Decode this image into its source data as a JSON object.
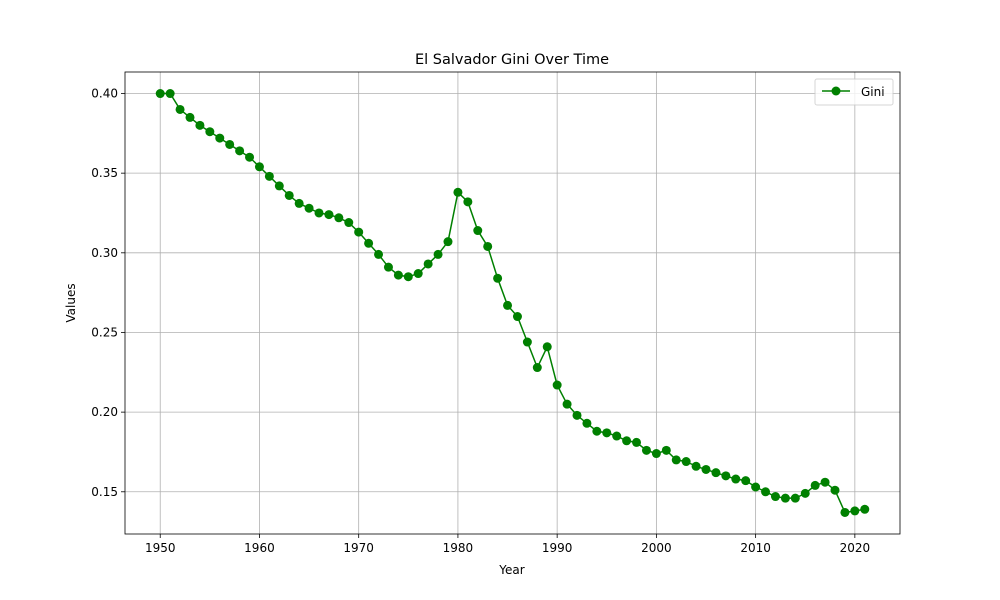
{
  "chart_data": {
    "type": "line",
    "title": "El Salvador Gini Over Time",
    "xlabel": "Year",
    "ylabel": "Values",
    "xlim": [
      1946.45,
      2024.55
    ],
    "ylim": [
      0.1235,
      0.4135
    ],
    "xticks": [
      1950,
      1960,
      1970,
      1980,
      1990,
      2000,
      2010,
      2020
    ],
    "yticks": [
      0.15,
      0.2,
      0.25,
      0.3,
      0.35,
      0.4
    ],
    "ytick_labels": [
      "0.15",
      "0.20",
      "0.25",
      "0.30",
      "0.35",
      "0.40"
    ],
    "grid": true,
    "legend_position": "top-right",
    "series": [
      {
        "name": "Gini",
        "color": "#008000",
        "marker": "circle",
        "x": [
          1950,
          1951,
          1952,
          1953,
          1954,
          1955,
          1956,
          1957,
          1958,
          1959,
          1960,
          1961,
          1962,
          1963,
          1964,
          1965,
          1966,
          1967,
          1968,
          1969,
          1970,
          1971,
          1972,
          1973,
          1974,
          1975,
          1976,
          1977,
          1978,
          1979,
          1980,
          1981,
          1982,
          1983,
          1984,
          1985,
          1986,
          1987,
          1988,
          1989,
          1990,
          1991,
          1992,
          1993,
          1994,
          1995,
          1996,
          1997,
          1998,
          1999,
          2000,
          2001,
          2002,
          2003,
          2004,
          2005,
          2006,
          2007,
          2008,
          2009,
          2010,
          2011,
          2012,
          2013,
          2014,
          2015,
          2016,
          2017,
          2018,
          2019,
          2020,
          2021
        ],
        "values": [
          0.4,
          0.4,
          0.39,
          0.385,
          0.38,
          0.376,
          0.372,
          0.368,
          0.364,
          0.36,
          0.354,
          0.348,
          0.342,
          0.336,
          0.331,
          0.328,
          0.325,
          0.324,
          0.322,
          0.319,
          0.313,
          0.306,
          0.299,
          0.291,
          0.286,
          0.285,
          0.287,
          0.293,
          0.299,
          0.307,
          0.338,
          0.332,
          0.314,
          0.304,
          0.284,
          0.267,
          0.26,
          0.244,
          0.228,
          0.241,
          0.217,
          0.205,
          0.198,
          0.193,
          0.188,
          0.187,
          0.185,
          0.182,
          0.181,
          0.176,
          0.174,
          0.176,
          0.17,
          0.169,
          0.166,
          0.164,
          0.162,
          0.16,
          0.158,
          0.157,
          0.153,
          0.15,
          0.147,
          0.146,
          0.146,
          0.149,
          0.154,
          0.156,
          0.151,
          0.137,
          0.138,
          0.139
        ]
      }
    ]
  }
}
